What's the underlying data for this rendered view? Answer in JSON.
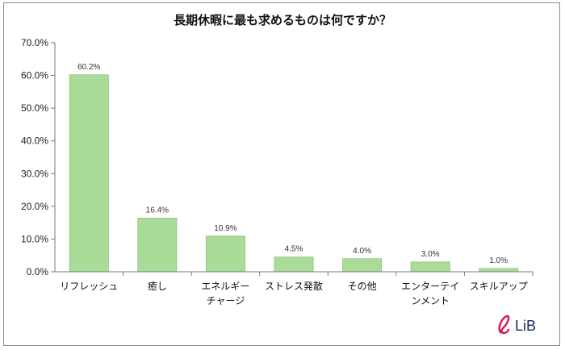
{
  "chart_data": {
    "type": "bar",
    "title": "長期休暇に最も求めるものは何ですか？",
    "categories": [
      "リフレッシュ",
      "癒し",
      "エネルギーチャージ",
      "ストレス発散",
      "その他",
      "エンターテインメント",
      "スキルアップ"
    ],
    "category_lines": [
      [
        "リフレッシュ"
      ],
      [
        "癒し"
      ],
      [
        "エネルギー",
        "チャージ"
      ],
      [
        "ストレス発散"
      ],
      [
        "その他"
      ],
      [
        "エンターテイ",
        "ンメント"
      ],
      [
        "スキルアップ"
      ]
    ],
    "values": [
      60.2,
      16.4,
      10.9,
      4.5,
      4.0,
      3.0,
      1.0
    ],
    "data_labels": [
      "60.2%",
      "16.4%",
      "10.9%",
      "4.5%",
      "4.0%",
      "3.0%",
      "1.0%"
    ],
    "ylim": [
      0,
      70
    ],
    "yticks": [
      0,
      10,
      20,
      30,
      40,
      50,
      60,
      70
    ],
    "ytick_labels": [
      "0.0%",
      "10.0%",
      "20.0%",
      "30.0%",
      "40.0%",
      "50.0%",
      "60.0%",
      "70.0%"
    ],
    "grid": false,
    "legend": "none",
    "bar_color": "#a9dc98",
    "bar_edge_color": "#8fc57d",
    "axis_color": "#7a7a7a"
  },
  "logo": {
    "text": "LiB",
    "mark_color": "#d4145a",
    "text_color": "#1a2a5a"
  }
}
